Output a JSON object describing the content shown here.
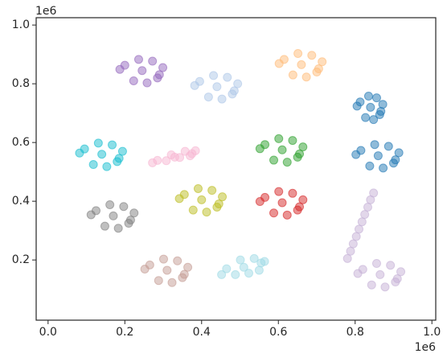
{
  "chart_data": {
    "type": "scatter",
    "x_scale_label": "1e6",
    "y_scale_label": "1e6",
    "xlim": [
      -31000,
      1010000
    ],
    "ylim": [
      -5000,
      1025000
    ],
    "xticks": [
      {
        "value": 0,
        "label": "0.0"
      },
      {
        "value": 200000,
        "label": "0.2"
      },
      {
        "value": 400000,
        "label": "0.4"
      },
      {
        "value": 600000,
        "label": "0.6"
      },
      {
        "value": 800000,
        "label": "0.8"
      },
      {
        "value": 1000000,
        "label": "1.0"
      }
    ],
    "yticks": [
      {
        "value": 200000,
        "label": "0.2"
      },
      {
        "value": 400000,
        "label": "0.4"
      },
      {
        "value": 600000,
        "label": "0.6"
      },
      {
        "value": 800000,
        "label": "0.8"
      },
      {
        "value": 1000000,
        "label": "1.0"
      }
    ],
    "series": [
      {
        "color": "#9467bd",
        "x": [
          245000,
          200000,
          290000,
          223000,
          272000,
          187000,
          299000,
          258000,
          236000,
          285000
        ],
        "values": [
          845000,
          863000,
          831000,
          810000,
          877000,
          849000,
          855000,
          803000,
          883000,
          820000
        ]
      },
      {
        "color": "#aec7e8",
        "x": [
          440000,
          395000,
          485000,
          418000,
          467000,
          382000,
          494000,
          453000,
          431000,
          480000
        ],
        "values": [
          790000,
          808000,
          776000,
          755000,
          822000,
          794000,
          800000,
          748000,
          828000,
          765000
        ]
      },
      {
        "color": "#ffbb78",
        "x": [
          660000,
          615000,
          705000,
          638000,
          687000,
          602000,
          714000,
          673000,
          651000,
          700000
        ],
        "values": [
          865000,
          883000,
          851000,
          830000,
          897000,
          869000,
          875000,
          823000,
          903000,
          840000
        ]
      },
      {
        "color": "#1f77b4",
        "x": [
          840000,
          813000,
          867000,
          827000,
          856000,
          805000,
          872000,
          848000,
          835000,
          864000
        ],
        "values": [
          720000,
          738000,
          706000,
          685000,
          752000,
          724000,
          730000,
          678000,
          758000,
          695000
        ]
      },
      {
        "color": "#1f77b4",
        "x": [
          860000,
          815000,
          905000,
          838000,
          887000,
          802000,
          914000,
          873000,
          851000,
          900000
        ],
        "values": [
          555000,
          573000,
          541000,
          520000,
          587000,
          559000,
          565000,
          513000,
          593000,
          530000
        ]
      },
      {
        "color": "#17becf",
        "x": [
          140000,
          95000,
          185000,
          118000,
          167000,
          82000,
          194000,
          153000,
          131000,
          180000
        ],
        "values": [
          560000,
          578000,
          546000,
          525000,
          592000,
          564000,
          570000,
          518000,
          598000,
          535000
        ]
      },
      {
        "color": "#f7b6d2",
        "x": [
          330000,
          285000,
          375000,
          308000,
          357000,
          272000,
          384000,
          343000,
          321000,
          370000
        ],
        "values": [
          550000,
          539000,
          562000,
          538000,
          570000,
          531000,
          572000,
          549000,
          558000,
          555000
        ]
      },
      {
        "color": "#2ca02c",
        "x": [
          610000,
          565000,
          655000,
          588000,
          637000,
          552000,
          664000,
          623000,
          601000,
          650000
        ],
        "values": [
          575000,
          593000,
          561000,
          540000,
          607000,
          579000,
          585000,
          533000,
          613000,
          550000
        ]
      },
      {
        "color": "#7f7f7f",
        "x": [
          170000,
          125000,
          215000,
          148000,
          197000,
          112000,
          224000,
          183000,
          161000,
          210000
        ],
        "values": [
          350000,
          368000,
          336000,
          315000,
          382000,
          354000,
          360000,
          308000,
          388000,
          325000
        ]
      },
      {
        "color": "#bcbd22",
        "x": [
          400000,
          355000,
          445000,
          378000,
          427000,
          342000,
          454000,
          413000,
          391000,
          440000
        ],
        "values": [
          405000,
          423000,
          391000,
          370000,
          437000,
          409000,
          415000,
          363000,
          443000,
          380000
        ]
      },
      {
        "color": "#d62728",
        "x": [
          610000,
          565000,
          655000,
          588000,
          637000,
          552000,
          664000,
          623000,
          601000,
          650000
        ],
        "values": [
          395000,
          413000,
          381000,
          360000,
          427000,
          399000,
          405000,
          353000,
          433000,
          370000
        ]
      },
      {
        "color": "#c5b0d5",
        "x": [
          780000,
          788000,
          795000,
          803000,
          810000,
          818000,
          825000,
          833000,
          840000,
          848000
        ],
        "values": [
          205000,
          230000,
          255000,
          280000,
          305000,
          330000,
          355000,
          380000,
          405000,
          428000
        ]
      },
      {
        "color": "#c5b0d5",
        "x": [
          865000,
          820000,
          910000,
          843000,
          892000,
          807000,
          919000,
          878000,
          856000,
          905000
        ],
        "values": [
          150000,
          168000,
          136000,
          115000,
          182000,
          154000,
          160000,
          108000,
          188000,
          125000
        ]
      },
      {
        "color": "#c49c94",
        "x": [
          310000,
          265000,
          355000,
          288000,
          337000,
          252000,
          364000,
          323000,
          301000,
          350000
        ],
        "values": [
          165000,
          183000,
          151000,
          130000,
          197000,
          169000,
          175000,
          123000,
          203000,
          140000
        ]
      },
      {
        "color": "#9edae5",
        "x": [
          510000,
          465000,
          555000,
          488000,
          537000,
          452000,
          564000,
          523000,
          501000,
          550000
        ],
        "values": [
          175000,
          170000,
          190000,
          150000,
          205000,
          150000,
          195000,
          155000,
          200000,
          165000
        ]
      }
    ]
  }
}
